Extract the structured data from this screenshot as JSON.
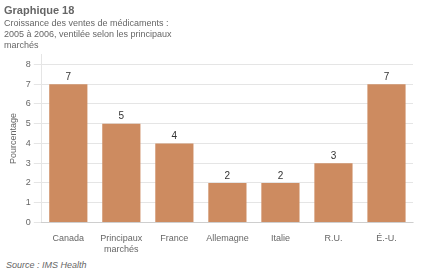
{
  "chart_data": {
    "type": "bar",
    "title": "Graphique 18",
    "subtitle": "Croissance des ventes de médicaments :\n2005 à 2006, ventilée selon les principaux\nmarchés",
    "ylabel": "Pourcentage",
    "source": "Source : IMS Health",
    "categories": [
      "Canada",
      "Principaux\nmarchés",
      "France",
      "Allemagne",
      "Italie",
      "R.U.",
      "É.-U."
    ],
    "values": [
      7,
      5,
      4,
      2,
      2,
      3,
      7
    ],
    "color": "#cd8b60",
    "ylim": [
      0,
      8.5
    ],
    "yticks": [
      0,
      1,
      2,
      3,
      4,
      5,
      6,
      7,
      8
    ],
    "grid": true,
    "data_labels": true
  }
}
